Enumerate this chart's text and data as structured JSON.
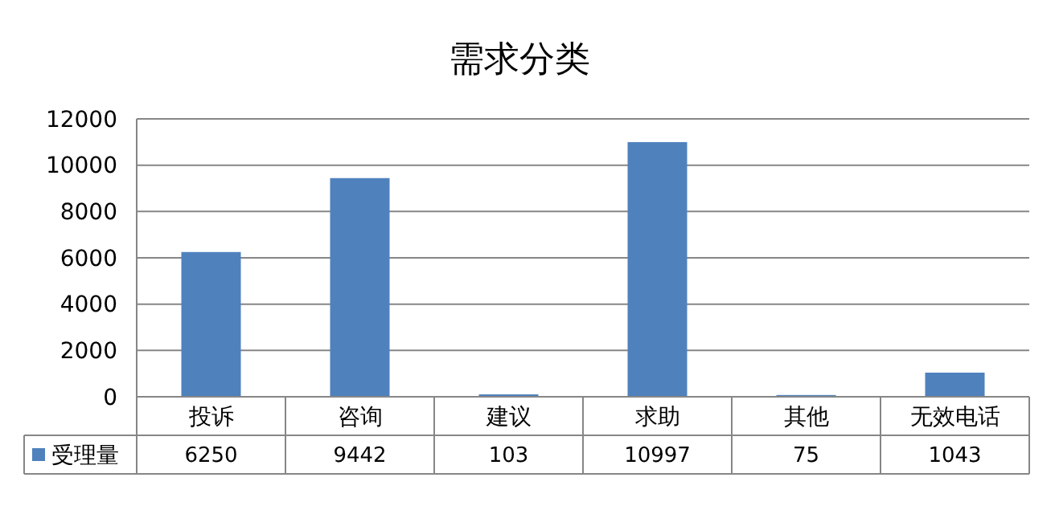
{
  "chart_data": {
    "type": "bar",
    "title": "需求分类",
    "categories": [
      "投诉",
      "咨询",
      "建议",
      "求助",
      "其他",
      "无效电话"
    ],
    "series": [
      {
        "name": "受理量",
        "color": "#4f81bd",
        "values": [
          6250,
          9442,
          103,
          10997,
          75,
          1043
        ]
      }
    ],
    "ylim": [
      0,
      12000
    ],
    "yticks": [
      0,
      2000,
      4000,
      6000,
      8000,
      10000,
      12000
    ],
    "grid": "y",
    "legend": "bottom",
    "data_labels": true
  }
}
